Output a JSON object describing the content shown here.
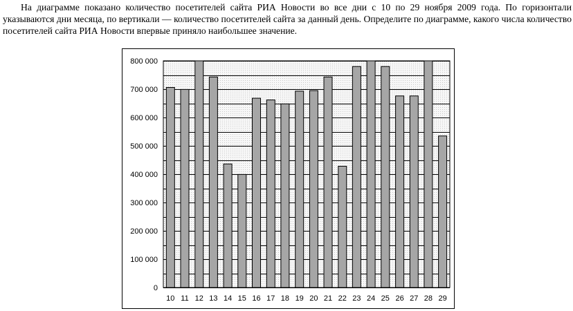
{
  "problem_text": "На диаграмме показано количество посетителей сайта РИА Новости во все дни с 10 по 29 ноября 2009 года. По горизонтали указываются дни месяца, по вертикали — количество посетителей сайта за данный день. Определите по диаграмме, какого числа количество посетителей сайта РИА Новости впервые приняло наибольшее значение.",
  "chart_data": {
    "type": "bar",
    "title": "",
    "xlabel": "",
    "ylabel": "",
    "categories": [
      "10",
      "11",
      "12",
      "13",
      "14",
      "15",
      "16",
      "17",
      "18",
      "19",
      "20",
      "21",
      "22",
      "23",
      "24",
      "25",
      "26",
      "27",
      "28",
      "29"
    ],
    "values": [
      706000,
      699000,
      800000,
      743000,
      436000,
      399000,
      668000,
      662000,
      648000,
      693000,
      695000,
      743000,
      428000,
      780000,
      800000,
      780000,
      676000,
      676000,
      800000,
      535000
    ],
    "ylim": [
      0,
      800000
    ],
    "y_ticks": [
      {
        "value": 0,
        "label": "0"
      },
      {
        "value": 100000,
        "label": "100 000"
      },
      {
        "value": 200000,
        "label": "200 000"
      },
      {
        "value": 300000,
        "label": "300 000"
      },
      {
        "value": 400000,
        "label": "400 000"
      },
      {
        "value": 500000,
        "label": "500 000"
      },
      {
        "value": 600000,
        "label": "600 000"
      },
      {
        "value": 700000,
        "label": "700 000"
      },
      {
        "value": 800000,
        "label": "800 000"
      }
    ],
    "minor_gridline_step": 50000,
    "grid": true,
    "legend": "none",
    "colors": {
      "bar_fill": "#a6a6a6",
      "bar_stroke": "#000000",
      "plot_background": "#f0f0f0",
      "gridline": "#000000"
    }
  }
}
